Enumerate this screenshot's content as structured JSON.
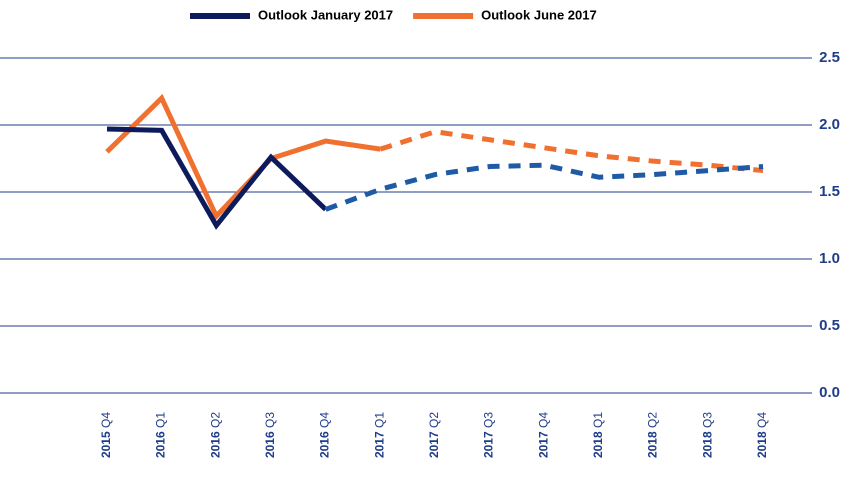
{
  "chart_data": {
    "type": "line",
    "categories": [
      "2015 Q4",
      "2016 Q1",
      "2016 Q2",
      "2016 Q3",
      "2016 Q4",
      "2017 Q1",
      "2017 Q2",
      "2017 Q3",
      "2017 Q4",
      "2018 Q1",
      "2018 Q2",
      "2018 Q3",
      "2018 Q4"
    ],
    "series": [
      {
        "name": "Outlook January 2017",
        "color": "#0d1a5c",
        "forecast_color": "#1f5aa6",
        "forecast_start": 4,
        "values": [
          1.97,
          1.96,
          1.25,
          1.76,
          1.37,
          1.52,
          1.63,
          1.69,
          1.7,
          1.61,
          1.63,
          1.66,
          1.69
        ]
      },
      {
        "name": "Outlook June 2017",
        "color": "#f07030",
        "forecast_color": "#f07030",
        "forecast_start": 5,
        "values": [
          1.8,
          2.2,
          1.32,
          1.75,
          1.88,
          1.82,
          1.95,
          1.89,
          1.83,
          1.77,
          1.73,
          1.7,
          1.66
        ]
      }
    ],
    "ylim": [
      0,
      2.5
    ],
    "yticks": [
      {
        "value": 0,
        "label": "0.0"
      },
      0.5,
      {
        "value": 1,
        "label": "1.0"
      },
      1.5,
      {
        "value": 2,
        "label": "2.0"
      },
      2.5
    ],
    "grid": true,
    "legend_position": "top"
  }
}
